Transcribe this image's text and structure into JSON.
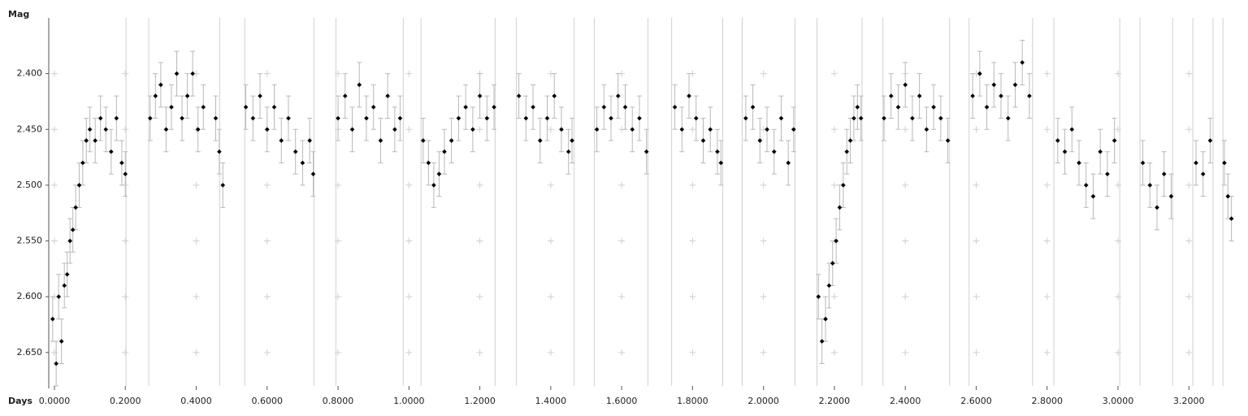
{
  "chart_data": {
    "type": "scatter",
    "x_label": "Days",
    "y_label": "Mag",
    "xlim": [
      -0.016,
      3.33
    ],
    "ylim": [
      2.35,
      2.68
    ],
    "y_inverted": true,
    "grid": "crosses",
    "xticks": [
      {
        "value": 0,
        "label": "0.0000"
      },
      {
        "value": 0.2,
        "label": "0.2000"
      },
      {
        "value": 0.4,
        "label": "0.4000"
      },
      {
        "value": 0.6,
        "label": "0.6000"
      },
      {
        "value": 0.8,
        "label": "0.8000"
      },
      {
        "value": 1.0,
        "label": "1.0000"
      },
      {
        "value": 1.2,
        "label": "1.2000"
      },
      {
        "value": 1.4,
        "label": "1.4000"
      },
      {
        "value": 1.6,
        "label": "1.6000"
      },
      {
        "value": 1.8,
        "label": "1.8000"
      },
      {
        "value": 2.0,
        "label": "2.0000"
      },
      {
        "value": 2.2,
        "label": "2.2000"
      },
      {
        "value": 2.4,
        "label": "2.4000"
      },
      {
        "value": 2.6,
        "label": "2.6000"
      },
      {
        "value": 2.8,
        "label": "2.8000"
      },
      {
        "value": 3.0,
        "label": "3.0000"
      },
      {
        "value": 3.2,
        "label": "3.2000"
      }
    ],
    "yticks": [
      {
        "value": 2.4,
        "label": "2.400"
      },
      {
        "value": 2.45,
        "label": "2.450"
      },
      {
        "value": 2.5,
        "label": "2.500"
      },
      {
        "value": 2.55,
        "label": "2.550"
      },
      {
        "value": 2.6,
        "label": "2.600"
      },
      {
        "value": 2.65,
        "label": "2.650"
      }
    ],
    "x_markers": [
      0.202,
      0.266,
      0.466,
      0.537,
      0.732,
      0.794,
      0.984,
      1.034,
      1.243,
      1.303,
      1.466,
      1.523,
      1.674,
      1.741,
      1.885,
      1.94,
      2.089,
      2.151,
      2.278,
      2.337,
      2.525,
      2.58,
      2.759,
      2.819,
      3.005,
      3.062,
      3.154,
      3.211,
      3.268,
      3.296
    ],
    "marker_line_color": "#d0d0d0",
    "series": [
      {
        "color": "#000000",
        "error_color": "#b8b8b8",
        "error": 0.02,
        "x": [
          -0.005,
          0.005,
          0.012,
          0.02,
          0.028,
          0.036,
          0.044,
          0.052,
          0.06,
          0.07,
          0.08,
          0.09,
          0.1,
          0.115,
          0.13,
          0.145,
          0.16,
          0.175,
          0.19,
          0.2,
          0.27,
          0.285,
          0.3,
          0.315,
          0.33,
          0.345,
          0.36,
          0.375,
          0.39,
          0.405,
          0.42,
          0.455,
          0.465,
          0.475,
          0.54,
          0.56,
          0.58,
          0.6,
          0.62,
          0.64,
          0.66,
          0.68,
          0.7,
          0.72,
          0.73,
          0.8,
          0.82,
          0.84,
          0.86,
          0.88,
          0.9,
          0.92,
          0.94,
          0.96,
          0.975,
          1.04,
          1.055,
          1.07,
          1.085,
          1.1,
          1.12,
          1.14,
          1.16,
          1.18,
          1.2,
          1.22,
          1.24,
          1.31,
          1.33,
          1.35,
          1.37,
          1.39,
          1.41,
          1.43,
          1.45,
          1.46,
          1.53,
          1.55,
          1.57,
          1.59,
          1.61,
          1.63,
          1.65,
          1.67,
          1.75,
          1.77,
          1.79,
          1.81,
          1.83,
          1.85,
          1.87,
          1.88,
          1.95,
          1.97,
          1.99,
          2.01,
          2.03,
          2.05,
          2.07,
          2.085,
          2.155,
          2.165,
          2.175,
          2.185,
          2.195,
          2.205,
          2.215,
          2.225,
          2.235,
          2.245,
          2.255,
          2.265,
          2.275,
          2.34,
          2.36,
          2.38,
          2.4,
          2.42,
          2.44,
          2.46,
          2.48,
          2.5,
          2.52,
          2.59,
          2.61,
          2.63,
          2.65,
          2.67,
          2.69,
          2.71,
          2.73,
          2.75,
          2.83,
          2.85,
          2.87,
          2.89,
          2.91,
          2.93,
          2.95,
          2.97,
          2.99,
          3.07,
          3.09,
          3.11,
          3.13,
          3.15,
          3.22,
          3.24,
          3.26,
          3.3,
          3.31,
          3.32
        ],
        "values": [
          2.62,
          2.66,
          2.6,
          2.64,
          2.59,
          2.58,
          2.55,
          2.54,
          2.52,
          2.5,
          2.48,
          2.46,
          2.45,
          2.46,
          2.44,
          2.45,
          2.47,
          2.44,
          2.48,
          2.49,
          2.44,
          2.42,
          2.41,
          2.45,
          2.43,
          2.4,
          2.44,
          2.42,
          2.4,
          2.45,
          2.43,
          2.44,
          2.47,
          2.5,
          2.43,
          2.44,
          2.42,
          2.45,
          2.43,
          2.46,
          2.44,
          2.47,
          2.48,
          2.46,
          2.49,
          2.44,
          2.42,
          2.45,
          2.41,
          2.44,
          2.43,
          2.46,
          2.42,
          2.45,
          2.44,
          2.46,
          2.48,
          2.5,
          2.49,
          2.47,
          2.46,
          2.44,
          2.43,
          2.45,
          2.42,
          2.44,
          2.43,
          2.42,
          2.44,
          2.43,
          2.46,
          2.44,
          2.42,
          2.45,
          2.47,
          2.46,
          2.45,
          2.43,
          2.44,
          2.42,
          2.43,
          2.45,
          2.44,
          2.47,
          2.43,
          2.45,
          2.42,
          2.44,
          2.46,
          2.45,
          2.47,
          2.48,
          2.44,
          2.43,
          2.46,
          2.45,
          2.47,
          2.44,
          2.48,
          2.45,
          2.6,
          2.64,
          2.62,
          2.59,
          2.57,
          2.55,
          2.52,
          2.5,
          2.47,
          2.46,
          2.44,
          2.43,
          2.44,
          2.44,
          2.42,
          2.43,
          2.41,
          2.44,
          2.42,
          2.45,
          2.43,
          2.44,
          2.46,
          2.42,
          2.4,
          2.43,
          2.41,
          2.42,
          2.44,
          2.41,
          2.39,
          2.42,
          2.46,
          2.47,
          2.45,
          2.48,
          2.5,
          2.51,
          2.47,
          2.49,
          2.46,
          2.48,
          2.5,
          2.52,
          2.49,
          2.51,
          2.48,
          2.49,
          2.46,
          2.48,
          2.51,
          2.53
        ]
      }
    ]
  }
}
